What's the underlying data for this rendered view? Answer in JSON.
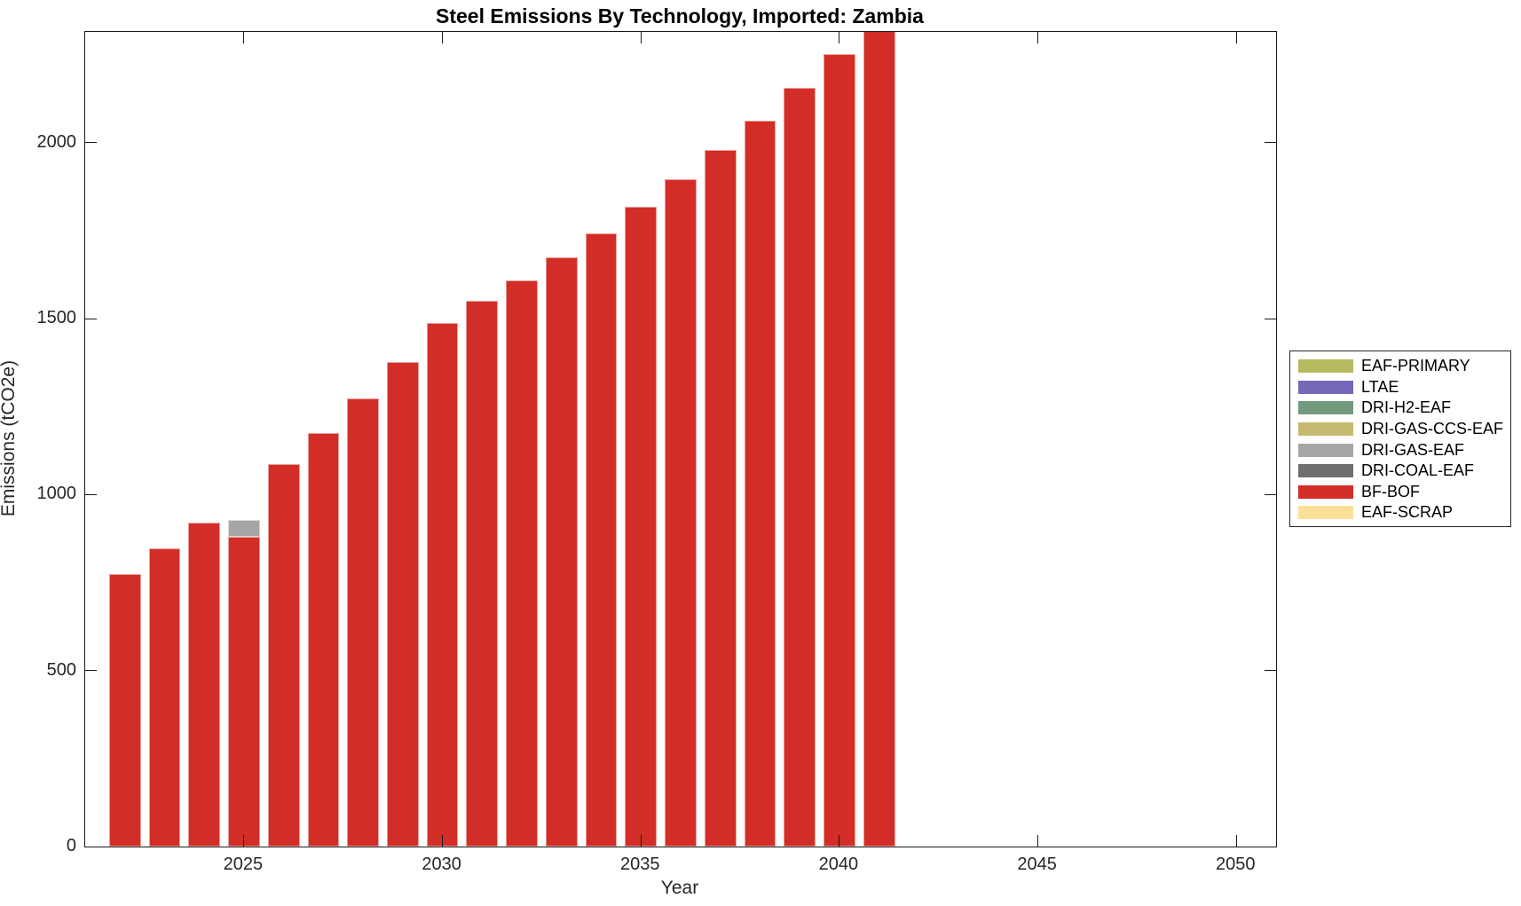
{
  "chart_data": {
    "type": "bar",
    "stacked": true,
    "title": "Steel Emissions By Technology, Imported: Zambia",
    "xlabel": "Year",
    "ylabel": "Emissions (tCO2e)",
    "xlim": [
      2021,
      2051
    ],
    "ylim": [
      0,
      2315
    ],
    "xticks": [
      2025,
      2030,
      2035,
      2040,
      2045,
      2050
    ],
    "yticks": [
      0,
      500,
      1000,
      1500,
      2000
    ],
    "grid": false,
    "bar_width_fraction": 0.8,
    "legend_position": "right-outside",
    "categories": [
      2022,
      2023,
      2024,
      2025,
      2026,
      2027,
      2028,
      2029,
      2030,
      2031,
      2032,
      2033,
      2034,
      2035,
      2036,
      2037,
      2038,
      2039,
      2040,
      2041
    ],
    "series": [
      {
        "name": "BF-BOF",
        "color": "#d22d26",
        "values": [
          775,
          847,
          920,
          881,
          1087,
          1176,
          1274,
          1378,
          1487,
          1550,
          1609,
          1675,
          1743,
          1817,
          1897,
          1979,
          2064,
          2156,
          2251,
          2345
        ]
      },
      {
        "name": "DRI-GAS-EAF",
        "color": "#a7a6a4",
        "values": [
          0,
          0,
          0,
          46,
          0,
          0,
          0,
          0,
          0,
          0,
          0,
          0,
          0,
          0,
          0,
          0,
          0,
          0,
          0,
          0
        ]
      }
    ],
    "legend": [
      {
        "label": "EAF-PRIMARY",
        "color": "#b5ba60"
      },
      {
        "label": "LTAE",
        "color": "#7568b8"
      },
      {
        "label": "DRI-H2-EAF",
        "color": "#73997e"
      },
      {
        "label": "DRI-GAS-CCS-EAF",
        "color": "#c6ba70"
      },
      {
        "label": "DRI-GAS-EAF",
        "color": "#a7a6a4"
      },
      {
        "label": "DRI-COAL-EAF",
        "color": "#6f6f6f"
      },
      {
        "label": "BF-BOF",
        "color": "#d22d26"
      },
      {
        "label": "EAF-SCRAP",
        "color": "#fbe197"
      }
    ]
  }
}
